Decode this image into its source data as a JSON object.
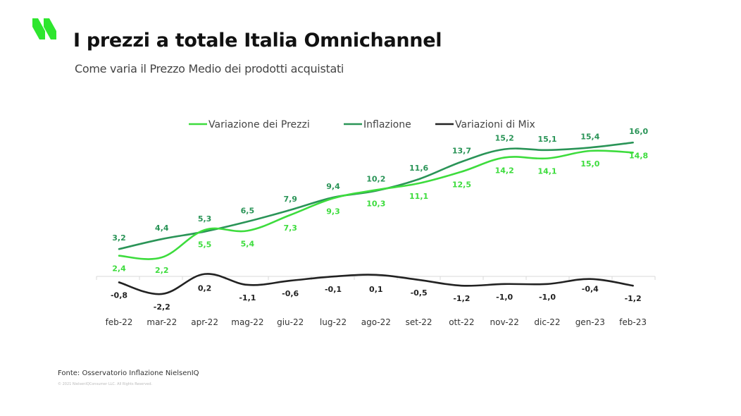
{
  "header": {
    "title": "I prezzi a totale Italia Omnichannel",
    "subtitle": "Come varia il Prezzo Medio dei prodotti acquistati",
    "logo_icon": "nielseniq-double-slash-logo",
    "accent_color": "#2ee62e"
  },
  "footer": {
    "source": "Fonte: Osservatorio Inflazione NielsenIQ",
    "copyright": "© 2021 NielsenIQConsumer LLC. All Rights Reserved."
  },
  "chart_data": {
    "type": "line",
    "title": "I prezzi a totale Italia Omnichannel",
    "subtitle": "Come varia il Prezzo Medio dei prodotti acquistati",
    "xlabel": "",
    "ylabel": "",
    "categories": [
      "feb-22",
      "mar-22",
      "apr-22",
      "mag-22",
      "giu-22",
      "lug-22",
      "ago-22",
      "set-22",
      "ott-22",
      "nov-22",
      "dic-22",
      "gen-23",
      "feb-23"
    ],
    "series": [
      {
        "name": "Variazione dei Prezzi",
        "color": "#3ddc3d",
        "values": [
          2.4,
          2.2,
          5.5,
          5.4,
          7.3,
          9.3,
          10.3,
          11.1,
          12.5,
          14.2,
          14.1,
          15.0,
          14.8
        ],
        "labels": [
          "2,4",
          "2,2",
          "5,5",
          "5,4",
          "7,3",
          "9,3",
          "10,3",
          "11,1",
          "12,5",
          "14,2",
          "14,1",
          "15,0",
          "14,8"
        ]
      },
      {
        "name": "Inflazione",
        "color": "#2a9457",
        "values": [
          3.2,
          4.4,
          5.3,
          6.5,
          7.9,
          9.4,
          10.2,
          11.6,
          13.7,
          15.2,
          15.1,
          15.4,
          16.0
        ],
        "labels": [
          "3,2",
          "4,4",
          "5,3",
          "6,5",
          "7,9",
          "9,4",
          "10,2",
          "11,6",
          "13,7",
          "15,2",
          "15,1",
          "15,4",
          "16,0"
        ]
      },
      {
        "name": "Variazioni di Mix",
        "color": "#222222",
        "values": [
          -0.8,
          -2.2,
          0.2,
          -1.1,
          -0.6,
          -0.1,
          0.1,
          -0.5,
          -1.2,
          -1.0,
          -1.0,
          -0.4,
          -1.2
        ],
        "labels": [
          "-0,8",
          "-2,2",
          "0,2",
          "-1,1",
          "-0,6",
          "-0,1",
          "0,1",
          "-0,5",
          "-1,2",
          "-1,0",
          "-1,0",
          "-0,4",
          "-1,2"
        ]
      }
    ],
    "ylim": [
      -2.5,
      16.5
    ],
    "grid": false,
    "legend": "top",
    "smooth": true
  }
}
